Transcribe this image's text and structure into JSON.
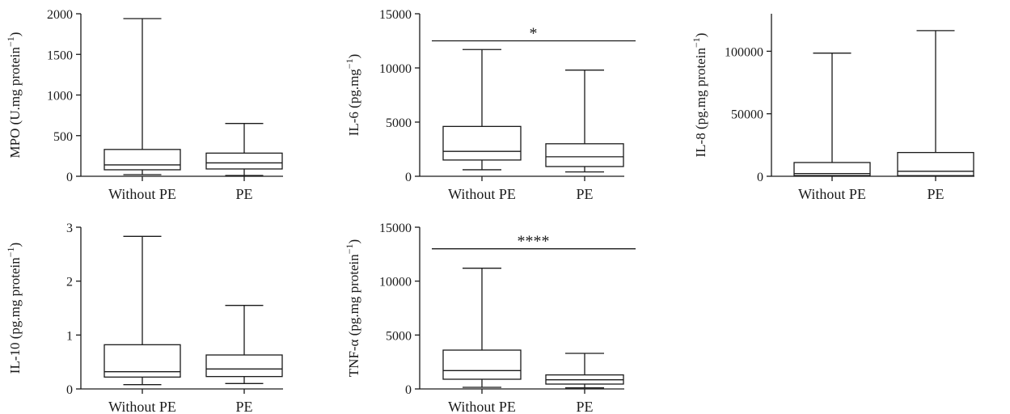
{
  "chart_data": [
    {
      "type": "box",
      "ylabel": "MPO (U.mg protein",
      "ylabel_sup": "−1",
      "ylabel_tail": ")",
      "ylim": [
        0,
        2000
      ],
      "yticks": [
        "0",
        "500",
        "1000",
        "1500",
        "2000"
      ],
      "ytick_values": [
        0,
        500,
        1000,
        1500,
        2000
      ],
      "categories": [
        "Without PE",
        "PE"
      ],
      "boxes": [
        {
          "min": 20,
          "q1": 80,
          "median": 140,
          "q3": 330,
          "max": 1940
        },
        {
          "min": 10,
          "q1": 90,
          "median": 165,
          "q3": 285,
          "max": 650
        }
      ],
      "significance": ""
    },
    {
      "type": "box",
      "ylabel": "IL-6 (pg.mg",
      "ylabel_sup": "−1",
      "ylabel_tail": ")",
      "ylim": [
        0,
        15000
      ],
      "yticks": [
        "0",
        "5000",
        "10000",
        "15000"
      ],
      "ytick_values": [
        0,
        5000,
        10000,
        15000
      ],
      "categories": [
        "Without PE",
        "PE"
      ],
      "boxes": [
        {
          "min": 600,
          "q1": 1500,
          "median": 2300,
          "q3": 4600,
          "max": 11700
        },
        {
          "min": 400,
          "q1": 900,
          "median": 1800,
          "q3": 3000,
          "max": 9800
        }
      ],
      "significance": "*",
      "sig_value": 12500
    },
    {
      "type": "box",
      "ylabel": "IL-8 (pg.mg protein",
      "ylabel_sup": "−1",
      "ylabel_tail": ")",
      "ylim": [
        0,
        130000
      ],
      "yticks": [
        "0",
        "50000",
        "100000"
      ],
      "ytick_values": [
        0,
        50000,
        100000
      ],
      "categories": [
        "Without PE",
        "PE"
      ],
      "boxes": [
        {
          "min": 200,
          "q1": 600,
          "median": 2200,
          "q3": 11000,
          "max": 98500
        },
        {
          "min": 200,
          "q1": 500,
          "median": 4000,
          "q3": 19000,
          "max": 116500
        }
      ],
      "significance": ""
    },
    {
      "type": "box",
      "ylabel": "IL-10 (pg.mg protein",
      "ylabel_sup": "−1",
      "ylabel_tail": ")",
      "ylim": [
        0,
        3
      ],
      "yticks": [
        "0",
        "1",
        "2",
        "3"
      ],
      "ytick_values": [
        0,
        1,
        2,
        3
      ],
      "categories": [
        "Without PE",
        "PE"
      ],
      "boxes": [
        {
          "min": 0.08,
          "q1": 0.22,
          "median": 0.32,
          "q3": 0.82,
          "max": 2.83
        },
        {
          "min": 0.1,
          "q1": 0.23,
          "median": 0.37,
          "q3": 0.63,
          "max": 1.55
        }
      ],
      "significance": ""
    },
    {
      "type": "box",
      "ylabel": "TNF-α (pg.mg protein",
      "ylabel_sup": "−1",
      "ylabel_tail": ")",
      "ylim": [
        0,
        15000
      ],
      "yticks": [
        "0",
        "5000",
        "10000",
        "15000"
      ],
      "ytick_values": [
        0,
        5000,
        10000,
        15000
      ],
      "categories": [
        "Without PE",
        "PE"
      ],
      "boxes": [
        {
          "min": 150,
          "q1": 900,
          "median": 1700,
          "q3": 3600,
          "max": 11200
        },
        {
          "min": 100,
          "q1": 450,
          "median": 850,
          "q3": 1300,
          "max": 3300
        }
      ],
      "significance": "****",
      "sig_value": 13000
    }
  ]
}
